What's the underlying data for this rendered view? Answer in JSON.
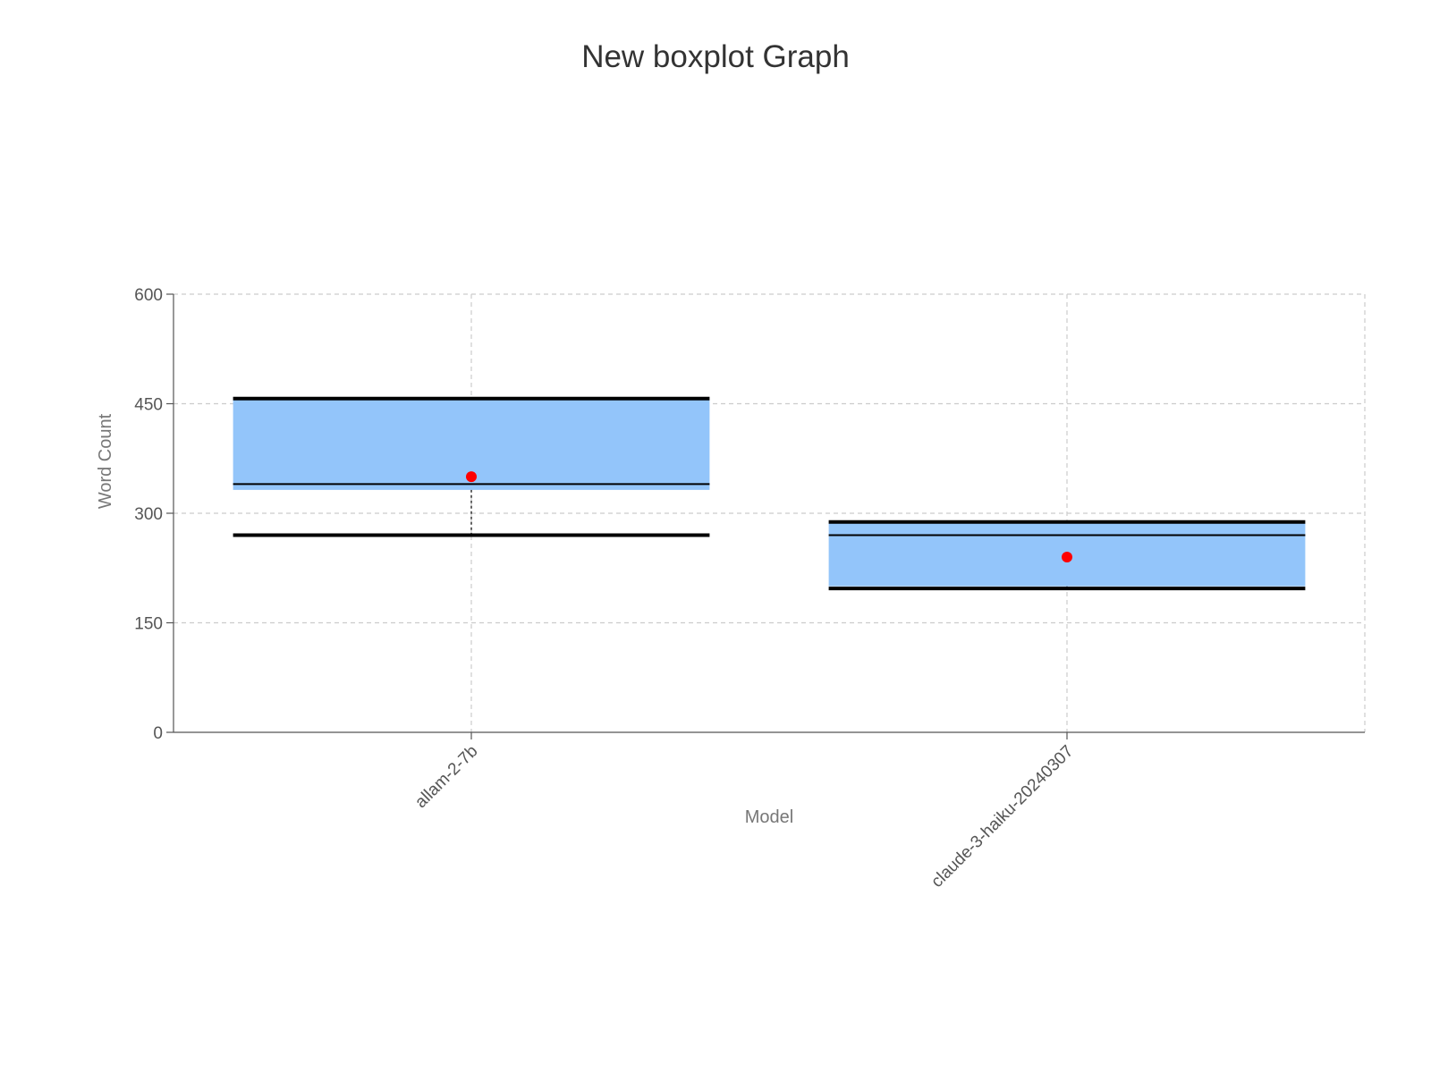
{
  "chart_data": {
    "type": "box",
    "title": "New boxplot Graph",
    "xlabel": "Model",
    "ylabel": "Word Count",
    "ylim": [
      0,
      600
    ],
    "yticks": [
      0,
      150,
      300,
      450,
      600
    ],
    "grid": true,
    "categories": [
      "allam-2-7b",
      "claude-3-haiku-20240307"
    ],
    "boxes": [
      {
        "category": "allam-2-7b",
        "min": 270,
        "q1": 332,
        "median": 340,
        "q3": 455,
        "max": 457,
        "mean": 350
      },
      {
        "category": "claude-3-haiku-20240307",
        "min": 197,
        "q1": 200,
        "median": 270,
        "q3": 287,
        "max": 288,
        "mean": 240
      }
    ],
    "colors": {
      "box_fill": "#93c5fa",
      "whisker": "#000000",
      "mean_marker": "#ff0000",
      "grid": "#cccccc"
    }
  }
}
